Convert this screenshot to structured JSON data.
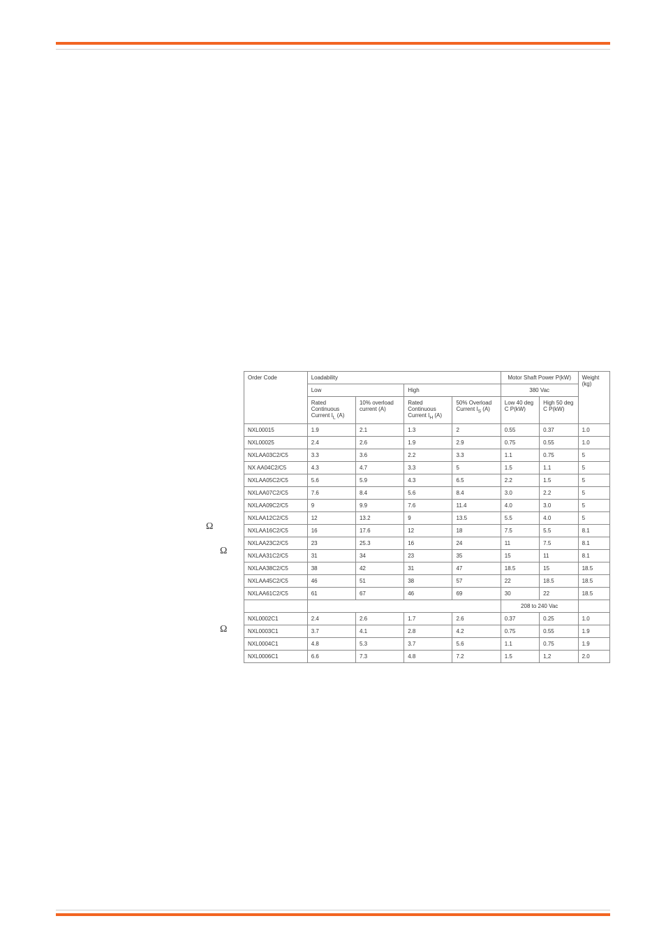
{
  "table": {
    "headers": {
      "order_code": "Order Code",
      "loadability": "Loadability",
      "low": "Low",
      "high": "High",
      "rated_cont_il": "Rated Continuous Current IL (A)",
      "overload_10": "10% overload current (A)",
      "rated_cont_ih": "Rated Continuous Current IH (A)",
      "overload_50": "50% Overload Current IS (A)",
      "motor_shaft_power": "Motor Shaft Power P(kW)",
      "weight": "Weight (kg)",
      "voltage_380": "380 Vac",
      "low_40": "Low 40 deg C P(kW)",
      "high_50": "High 50 deg C P(kW)",
      "voltage_208": "208 to 240 Vac"
    },
    "rows_380": [
      {
        "code": "NXL00015",
        "il": "1.9",
        "o10": "2.1",
        "ih": "1.3",
        "o50": "2",
        "low": "0.55",
        "high": "0.37",
        "wt": "1.0"
      },
      {
        "code": "NXL00025",
        "il": "2.4",
        "o10": "2.6",
        "ih": "1.9",
        "o50": "2.9",
        "low": "0.75",
        "high": "0.55",
        "wt": "1.0"
      },
      {
        "code": "NXLAA03C2/C5",
        "il": "3.3",
        "o10": "3.6",
        "ih": "2.2",
        "o50": "3.3",
        "low": "1.1",
        "high": "0.75",
        "wt": "5"
      },
      {
        "code": "NX AA04C2/C5",
        "il": "4.3",
        "o10": "4.7",
        "ih": "3.3",
        "o50": "5",
        "low": "1.5",
        "high": "1.1",
        "wt": "5"
      },
      {
        "code": "NXLAA05C2/C5",
        "il": "5.6",
        "o10": "5.9",
        "ih": "4.3",
        "o50": "6.5",
        "low": "2.2",
        "high": "1.5",
        "wt": "5"
      },
      {
        "code": "NXLAA07C2/C5",
        "il": "7.6",
        "o10": "8.4",
        "ih": "5.6",
        "o50": "8.4",
        "low": "3.0",
        "high": "2.2",
        "wt": "5"
      },
      {
        "code": "NXLAA09C2/C5",
        "il": "9",
        "o10": "9.9",
        "ih": "7.6",
        "o50": "11.4",
        "low": "4.0",
        "high": "3.0",
        "wt": "5"
      },
      {
        "code": "NXLAA12C2/C5",
        "il": "12",
        "o10": "13.2",
        "ih": "9",
        "o50": "13.5",
        "low": "5.5",
        "high": "4.0",
        "wt": "5"
      },
      {
        "code": "NXLAA16C2/C5",
        "il": "16",
        "o10": "17.6",
        "ih": "12",
        "o50": "18",
        "low": "7.5",
        "high": "5.5",
        "wt": "8.1"
      },
      {
        "code": "NXLAA23C2/C5",
        "il": "23",
        "o10": "25.3",
        "ih": "16",
        "o50": "24",
        "low": "11",
        "high": "7.5",
        "wt": "8.1"
      },
      {
        "code": "NXLAA31C2/C5",
        "il": "31",
        "o10": "34",
        "ih": "23",
        "o50": "35",
        "low": "15",
        "high": "11",
        "wt": "8.1"
      },
      {
        "code": "NXLAA38C2/C5",
        "il": "38",
        "o10": "42",
        "ih": "31",
        "o50": "47",
        "low": "18.5",
        "high": "15",
        "wt": "18.5"
      },
      {
        "code": "NXLAA45C2/C5",
        "il": "46",
        "o10": "51",
        "ih": "38",
        "o50": "57",
        "low": "22",
        "high": "18.5",
        "wt": "18.5"
      },
      {
        "code": "NXLAA61C2/C5",
        "il": "61",
        "o10": "67",
        "ih": "46",
        "o50": "69",
        "low": "30",
        "high": "22",
        "wt": "18.5"
      }
    ],
    "rows_208": [
      {
        "code": "NXL0002C1",
        "il": "2.4",
        "o10": "2.6",
        "ih": "1.7",
        "o50": "2.6",
        "low": "0.37",
        "high": "0.25",
        "wt": "1.0"
      },
      {
        "code": "NXL0003C1",
        "il": "3.7",
        "o10": "4.1",
        "ih": "2.8",
        "o50": "4.2",
        "low": "0.75",
        "high": "0.55",
        "wt": "1.9"
      },
      {
        "code": "NXL0004C1",
        "il": "4.8",
        "o10": "5.3",
        "ih": "3.7",
        "o50": "5.6",
        "low": "1.1",
        "high": "0.75",
        "wt": "1.9"
      },
      {
        "code": "NXL0006C1",
        "il": "6.6",
        "o10": "7.3",
        "ih": "4.8",
        "o50": "7.2",
        "low": "1.5",
        "high": "1,2",
        "wt": "2.0"
      }
    ]
  },
  "colors": {
    "accent": "#f26522",
    "border": "#888888",
    "text": "#333333"
  }
}
